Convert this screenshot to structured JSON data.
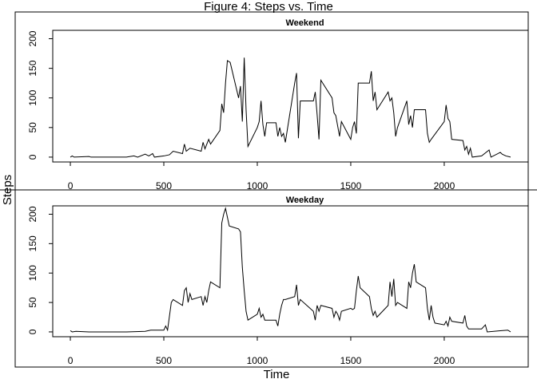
{
  "chart_data": {
    "type": "line",
    "title": "Figure 4: Steps vs. Time",
    "x_label": "Time",
    "y_label": "Steps",
    "color": "#000000",
    "panels": [
      {
        "name": "Weekend",
        "x": [
          0,
          10,
          20,
          100,
          110,
          300,
          340,
          360,
          400,
          420,
          440,
          450,
          500,
          530,
          550,
          600,
          610,
          620,
          640,
          700,
          710,
          720,
          740,
          750,
          800,
          810,
          820,
          830,
          840,
          855,
          900,
          910,
          920,
          930,
          940,
          950,
          1000,
          1010,
          1020,
          1030,
          1040,
          1050,
          1100,
          1110,
          1120,
          1130,
          1140,
          1150,
          1200,
          1210,
          1220,
          1230,
          1300,
          1310,
          1320,
          1330,
          1340,
          1400,
          1410,
          1420,
          1440,
          1450,
          1500,
          1510,
          1520,
          1530,
          1540,
          1600,
          1610,
          1620,
          1630,
          1640,
          1700,
          1710,
          1720,
          1730,
          1740,
          1750,
          1800,
          1810,
          1820,
          1830,
          1840,
          1900,
          1910,
          1920,
          1930,
          2000,
          2010,
          2020,
          2030,
          2040,
          2100,
          2110,
          2120,
          2130,
          2140,
          2150,
          2200,
          2240,
          2250,
          2300,
          2310,
          2330,
          2355
        ],
        "values": [
          0,
          2,
          0,
          1,
          0,
          0,
          2,
          0,
          5,
          2,
          6,
          0,
          2,
          4,
          10,
          6,
          22,
          10,
          15,
          10,
          25,
          14,
          30,
          22,
          45,
          90,
          75,
          125,
          163,
          160,
          100,
          120,
          60,
          168,
          80,
          18,
          50,
          60,
          95,
          55,
          35,
          58,
          58,
          35,
          50,
          35,
          40,
          25,
          125,
          142,
          32,
          95,
          95,
          110,
          72,
          30,
          130,
          100,
          75,
          70,
          35,
          60,
          30,
          50,
          60,
          40,
          125,
          125,
          145,
          95,
          110,
          80,
          110,
          95,
          100,
          75,
          35,
          50,
          95,
          55,
          70,
          50,
          80,
          80,
          40,
          25,
          30,
          60,
          88,
          65,
          60,
          30,
          28,
          12,
          18,
          5,
          15,
          0,
          2,
          12,
          0,
          8,
          5,
          2,
          0
        ],
        "xlim": [
          -94.2,
          2449.2
        ],
        "ylim": [
          -8.2,
          214.2
        ],
        "xticks": [
          0,
          500,
          1000,
          1500,
          2000
        ],
        "yticks": [
          0,
          50,
          100,
          150,
          200
        ]
      },
      {
        "name": "Weekday",
        "x": [
          0,
          10,
          30,
          100,
          200,
          300,
          400,
          430,
          500,
          510,
          520,
          540,
          550,
          600,
          610,
          620,
          630,
          640,
          650,
          700,
          710,
          720,
          730,
          740,
          750,
          800,
          810,
          820,
          830,
          840,
          850,
          900,
          910,
          920,
          930,
          940,
          950,
          1000,
          1010,
          1020,
          1030,
          1040,
          1100,
          1110,
          1120,
          1130,
          1140,
          1150,
          1200,
          1210,
          1220,
          1230,
          1300,
          1310,
          1320,
          1330,
          1340,
          1400,
          1410,
          1420,
          1430,
          1440,
          1450,
          1500,
          1510,
          1520,
          1530,
          1540,
          1550,
          1600,
          1610,
          1620,
          1630,
          1640,
          1700,
          1710,
          1720,
          1730,
          1740,
          1750,
          1800,
          1810,
          1820,
          1830,
          1840,
          1850,
          1900,
          1910,
          1920,
          1930,
          1940,
          1950,
          2000,
          2010,
          2020,
          2030,
          2040,
          2100,
          2110,
          2120,
          2130,
          2200,
          2220,
          2230,
          2300,
          2340,
          2355
        ],
        "values": [
          2,
          0,
          1,
          0,
          0,
          0,
          1,
          3,
          3,
          10,
          3,
          50,
          55,
          45,
          70,
          75,
          50,
          65,
          55,
          60,
          45,
          60,
          50,
          70,
          85,
          75,
          185,
          200,
          210,
          195,
          180,
          175,
          170,
          110,
          70,
          35,
          20,
          30,
          40,
          25,
          30,
          20,
          20,
          10,
          30,
          45,
          55,
          55,
          60,
          80,
          45,
          55,
          35,
          20,
          45,
          35,
          45,
          40,
          25,
          35,
          30,
          20,
          35,
          40,
          38,
          40,
          70,
          95,
          75,
          60,
          40,
          28,
          35,
          25,
          45,
          85,
          60,
          90,
          45,
          50,
          40,
          85,
          75,
          100,
          115,
          85,
          75,
          40,
          20,
          45,
          25,
          15,
          12,
          18,
          10,
          25,
          18,
          15,
          28,
          10,
          5,
          5,
          12,
          0,
          2,
          3,
          0
        ],
        "xlim": [
          -94.2,
          2449.2
        ],
        "ylim": [
          -8.2,
          214.2
        ],
        "xticks": [
          0,
          500,
          1000,
          1500,
          2000
        ],
        "yticks": [
          0,
          50,
          100,
          150,
          200
        ]
      }
    ]
  }
}
